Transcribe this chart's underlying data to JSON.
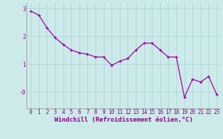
{
  "xlabel": "Windchill (Refroidissement éolien,°C)",
  "x": [
    0,
    1,
    2,
    3,
    4,
    5,
    6,
    7,
    8,
    9,
    10,
    11,
    12,
    13,
    14,
    15,
    16,
    17,
    18,
    19,
    20,
    21,
    22,
    23
  ],
  "y": [
    2.9,
    2.75,
    2.3,
    1.95,
    1.7,
    1.5,
    1.4,
    1.35,
    1.25,
    1.25,
    0.95,
    1.1,
    1.2,
    1.5,
    1.75,
    1.75,
    1.5,
    1.25,
    1.25,
    -0.2,
    0.45,
    0.35,
    0.55,
    -0.1
  ],
  "line_color": "#990099",
  "marker": "+",
  "background_color": "#cdeaea",
  "grid_color": "#aacfcf",
  "ylim": [
    -0.6,
    3.2
  ],
  "xlim": [
    -0.5,
    23.5
  ],
  "yticks": [
    0,
    1,
    2,
    3
  ],
  "ytick_labels": [
    "-0",
    "1",
    "2",
    "3"
  ],
  "xticks": [
    0,
    1,
    2,
    3,
    4,
    5,
    6,
    7,
    8,
    9,
    10,
    11,
    12,
    13,
    14,
    15,
    16,
    17,
    18,
    19,
    20,
    21,
    22,
    23
  ],
  "tick_fontsize": 5.5,
  "xlabel_fontsize": 6.5,
  "axis_text_color": "#880088"
}
